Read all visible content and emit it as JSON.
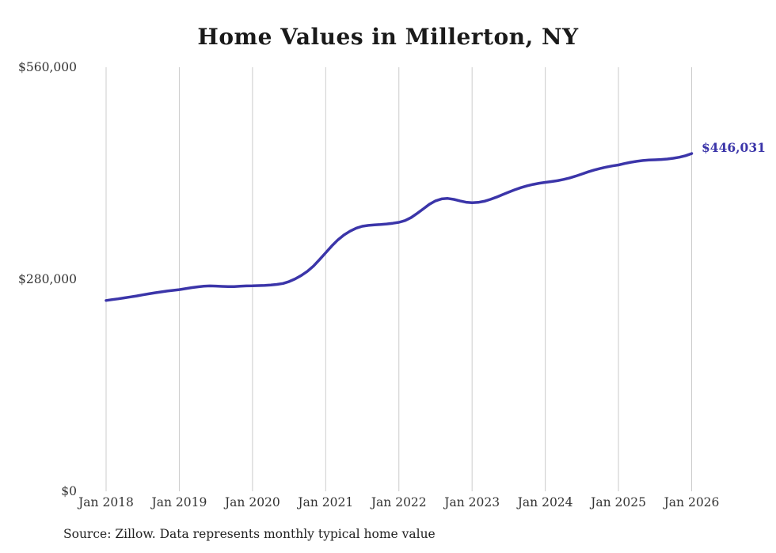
{
  "chart_data": {
    "type": "line",
    "title": "Home Values in Millerton, NY",
    "xlabel": "",
    "ylabel": "",
    "ylim": [
      0,
      560000
    ],
    "grid": "vertical-only",
    "frequency": "monthly",
    "x_start": "Jan 2018",
    "x_end": "Jan 2026",
    "x_tick_labels": [
      "Jan 2018",
      "Jan 2019",
      "Jan 2020",
      "Jan 2021",
      "Jan 2022",
      "Jan 2023",
      "Jan 2024",
      "Jan 2025",
      "Jan 2026"
    ],
    "y_tick_labels": [
      "$560,000",
      "$280,000",
      "$0"
    ],
    "end_label": "$446,031",
    "line_color": "#3b35a9",
    "gridline_color": "#cccccc",
    "series": [
      {
        "name": "Typical home value",
        "values": [
          252000,
          253100,
          254200,
          255400,
          256700,
          258000,
          259400,
          260800,
          262100,
          263300,
          264400,
          265400,
          266300,
          267600,
          268900,
          270000,
          270800,
          271200,
          271000,
          270600,
          270300,
          270400,
          270800,
          271200,
          271300,
          271600,
          272000,
          272500,
          273200,
          274500,
          277000,
          280500,
          285000,
          290500,
          297500,
          306000,
          315000,
          324000,
          332000,
          338500,
          343500,
          347500,
          350000,
          351200,
          351800,
          352300,
          353000,
          354000,
          355200,
          357500,
          361500,
          367000,
          373000,
          379000,
          383500,
          386200,
          386800,
          385500,
          383500,
          381800,
          381000,
          381500,
          383000,
          385500,
          388500,
          391800,
          395000,
          398200,
          401000,
          403400,
          405300,
          406800,
          408000,
          409000,
          410200,
          411800,
          413800,
          416200,
          419000,
          421800,
          424300,
          426400,
          428200,
          429700,
          431000,
          432800,
          434500,
          435800,
          436800,
          437400,
          437800,
          438200,
          438800,
          439800,
          441200,
          443200,
          446031
        ]
      }
    ]
  },
  "source_note": "Source: Zillow. Data represents monthly typical home value"
}
